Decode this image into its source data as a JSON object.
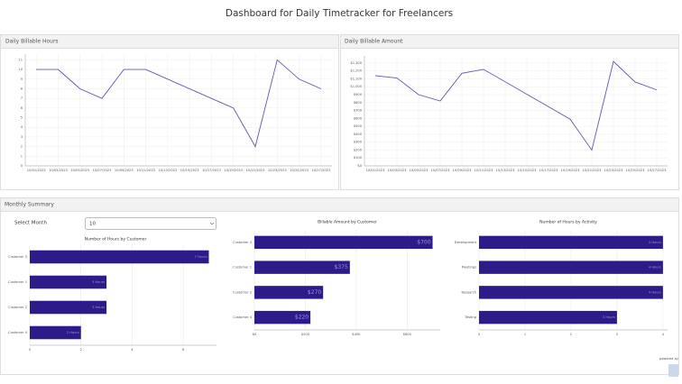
{
  "header": {
    "title": "Dashboard for Daily Timetracker for Freelancers"
  },
  "panels": [
    {
      "title": "Daily Billable Hours"
    },
    {
      "title": "Daily Billable Amount"
    },
    {
      "title": "Monthly Summary"
    }
  ],
  "controls": {
    "select_label": "Select Month",
    "select_value": "10"
  },
  "footer": {
    "text": "powered by"
  },
  "chart_data": [
    {
      "type": "line",
      "color": "#5c58a8",
      "grid": true,
      "x": [
        "10/01/2023",
        "10/03/2023",
        "10/05/2023",
        "10/07/2023",
        "10/09/2023",
        "10/11/2023",
        "10/19/2023",
        "10/21/2023",
        "10/23/2023",
        "10/25/2023",
        "10/27/2023"
      ],
      "values": [
        10,
        10,
        8,
        7,
        10,
        10,
        6,
        2,
        11,
        9,
        8
      ],
      "xlim": [
        "09/30/2023",
        "10/28/2023"
      ],
      "xticks": [
        "10/01/2023",
        "10/03/2023",
        "10/05/2023",
        "10/07/2023",
        "10/09/2023",
        "10/11/2023",
        "10/13/2023",
        "10/15/2023",
        "10/17/2023",
        "10/19/2023",
        "10/21/2023",
        "10/23/2023",
        "10/25/2023",
        "10/27/2023"
      ],
      "ylim": [
        0,
        11.6
      ],
      "yticks": [
        0,
        1,
        2,
        3,
        4,
        5,
        6,
        7,
        8,
        9,
        10,
        11
      ]
    },
    {
      "type": "line",
      "color": "#5c58a8",
      "grid": true,
      "x": [
        "10/01/2023",
        "10/03/2023",
        "10/05/2023",
        "10/07/2023",
        "10/09/2023",
        "10/11/2023",
        "10/19/2023",
        "10/21/2023",
        "10/23/2023",
        "10/25/2023",
        "10/27/2023"
      ],
      "values": [
        1140,
        1110,
        900,
        820,
        1170,
        1220,
        590,
        200,
        1320,
        1060,
        960
      ],
      "xlim": [
        "09/30/2023",
        "10/28/2023"
      ],
      "xticks": [
        "10/01/2023",
        "10/03/2023",
        "10/05/2023",
        "10/07/2023",
        "10/09/2023",
        "10/11/2023",
        "10/13/2023",
        "10/15/2023",
        "10/17/2023",
        "10/19/2023",
        "10/21/2023",
        "10/23/2023",
        "10/25/2023",
        "10/27/2023"
      ],
      "ylim": [
        0,
        1390
      ],
      "yticks": [
        {
          "value": 0,
          "label": "$0"
        },
        {
          "value": 100,
          "label": "$100"
        },
        {
          "value": 200,
          "label": "$200"
        },
        {
          "value": 300,
          "label": "$300"
        },
        {
          "value": 400,
          "label": "$400"
        },
        {
          "value": 500,
          "label": "$500"
        },
        {
          "value": 600,
          "label": "$600"
        },
        {
          "value": 700,
          "label": "$700"
        },
        {
          "value": 800,
          "label": "$800"
        },
        {
          "value": 900,
          "label": "$900"
        },
        {
          "value": 1000,
          "label": "$1,000"
        },
        {
          "value": 1100,
          "label": "$1,100"
        },
        {
          "value": 1200,
          "label": "$1,200"
        },
        {
          "value": 1300,
          "label": "$1,300"
        }
      ]
    },
    {
      "type": "hbar",
      "title": "Number of Hours by Customer",
      "color": "#2e1b8a",
      "grid": true,
      "categories": [
        "Customer 3",
        "Customer 1",
        "Customer 2",
        "Customer 4"
      ],
      "values": [
        7,
        3,
        3,
        2
      ],
      "value_labels": [
        "7 Hours",
        "3 Hours",
        "3 Hours",
        "2 Hours"
      ],
      "xlim": [
        0,
        7.3
      ],
      "xticks": [
        0,
        2,
        4,
        6
      ]
    },
    {
      "type": "hbar",
      "title": "Billable Amount by Customer",
      "color": "#2e1b8a",
      "grid": true,
      "categories": [
        "Customer 3",
        "Customer 1",
        "Customer 2",
        "Customer 4"
      ],
      "values": [
        700,
        375,
        270,
        220
      ],
      "value_labels": [
        "$700",
        "$375",
        "$270",
        "$220"
      ],
      "xlim": [
        0,
        730
      ],
      "xticks": [
        {
          "value": 0,
          "label": "$0"
        },
        {
          "value": 200,
          "label": "$200"
        },
        {
          "value": 400,
          "label": "$400"
        },
        {
          "value": 600,
          "label": "$600"
        }
      ]
    },
    {
      "type": "hbar",
      "title": "Number of Hours by Activity",
      "color": "#2e1b8a",
      "grid": true,
      "categories": [
        "Development",
        "Meetings",
        "Research",
        "Testing"
      ],
      "values": [
        4,
        4,
        4,
        3
      ],
      "value_labels": [
        "4 Hours",
        "4 Hours",
        "4 Hours",
        "3 Hours"
      ],
      "xlim": [
        0,
        4.1
      ],
      "xticks": [
        0,
        1,
        2,
        3,
        4
      ]
    }
  ]
}
